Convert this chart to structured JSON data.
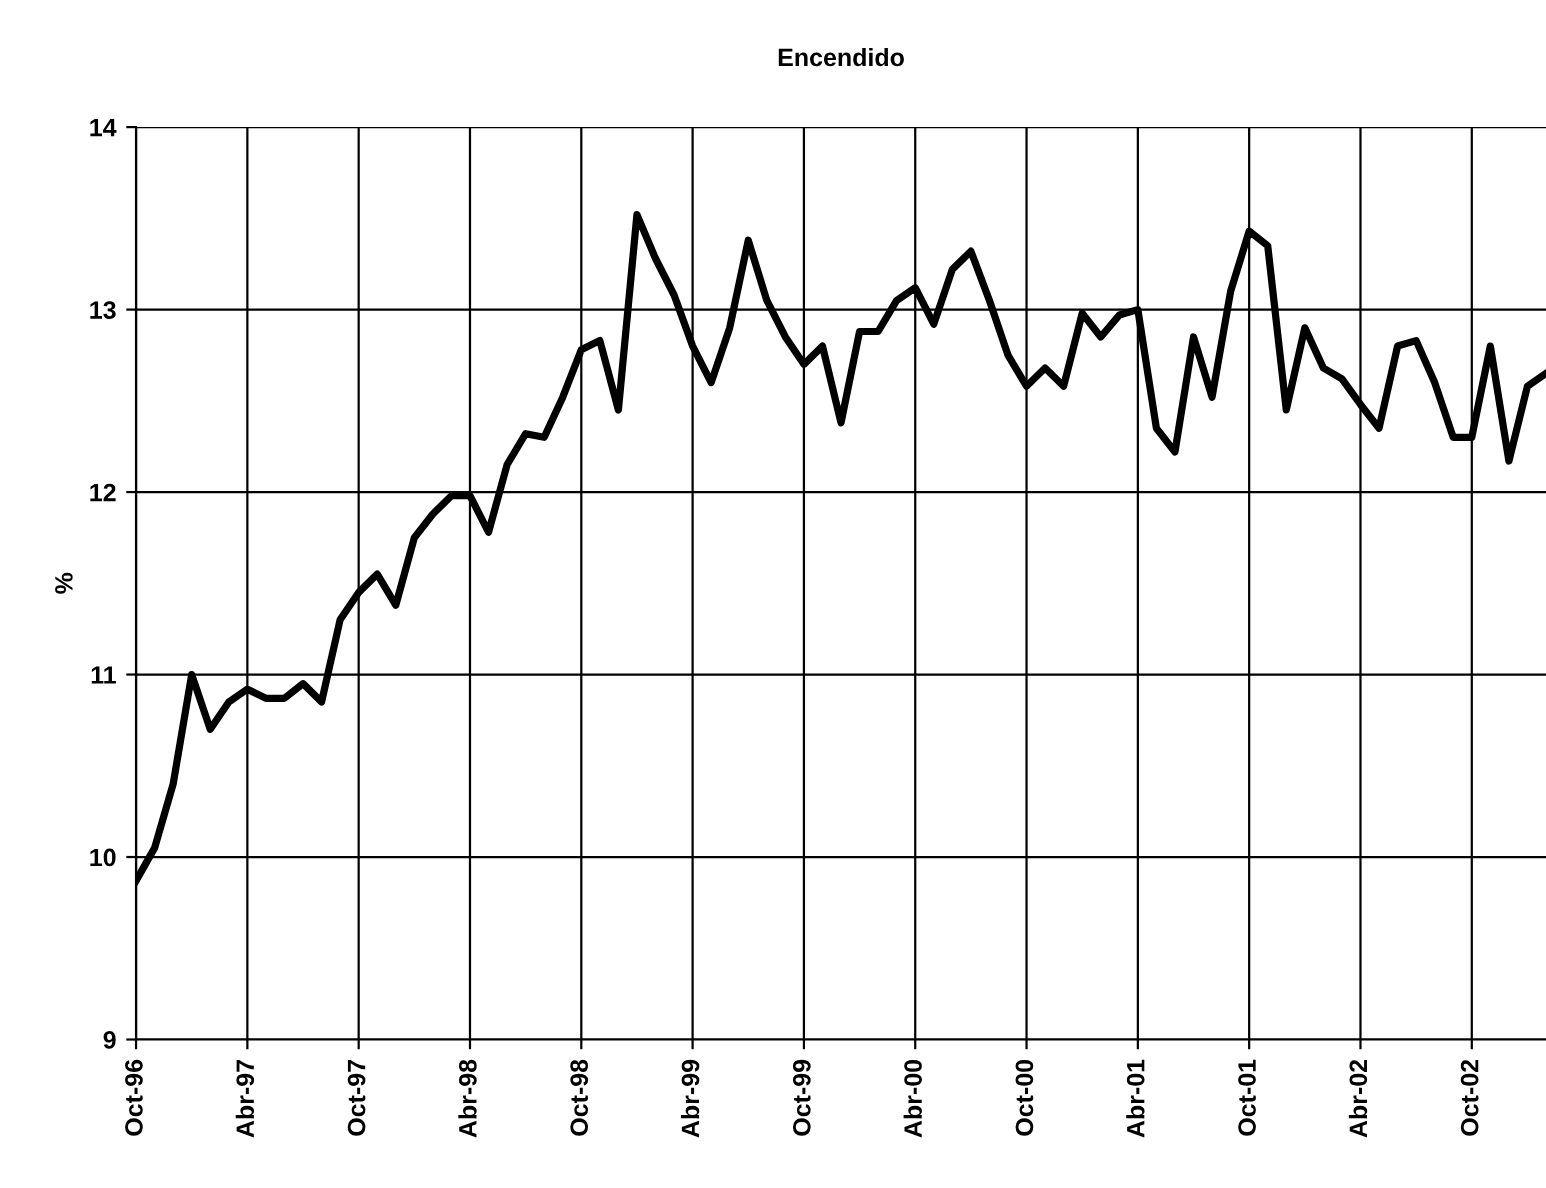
{
  "chart_data": {
    "type": "line",
    "title": "Encendido",
    "ylabel": "%",
    "categories": [
      "Oct-96",
      null,
      null,
      null,
      null,
      null,
      "Abr-97",
      null,
      null,
      null,
      null,
      null,
      "Oct-97",
      null,
      null,
      null,
      null,
      null,
      "Abr-98",
      null,
      null,
      null,
      null,
      null,
      "Oct-98",
      null,
      null,
      null,
      null,
      null,
      "Abr-99",
      null,
      null,
      null,
      null,
      null,
      "Oct-99",
      null,
      null,
      null,
      null,
      null,
      "Abr-00",
      null,
      null,
      null,
      null,
      null,
      "Oct-00",
      null,
      null,
      null,
      null,
      null,
      "Abr-01",
      null,
      null,
      null,
      null,
      null,
      "Oct-01",
      null,
      null,
      null,
      null,
      null,
      "Abr-02",
      null,
      null,
      null,
      null,
      null,
      "Oct-02",
      null,
      null,
      null,
      null
    ],
    "series": [
      {
        "color": "#000000",
        "values": [
          9.87,
          10.05,
          10.4,
          11.0,
          10.7,
          10.85,
          10.92,
          10.87,
          10.87,
          10.95,
          10.85,
          11.3,
          11.45,
          11.55,
          11.38,
          11.75,
          11.88,
          11.98,
          11.98,
          11.78,
          12.15,
          12.32,
          12.3,
          12.52,
          12.78,
          12.83,
          12.45,
          13.52,
          13.28,
          13.08,
          12.8,
          12.6,
          12.9,
          13.38,
          13.05,
          12.85,
          12.7,
          12.8,
          12.38,
          12.88,
          12.88,
          13.05,
          13.12,
          12.92,
          13.22,
          13.32,
          13.05,
          12.75,
          12.58,
          12.68,
          12.58,
          12.98,
          12.85,
          12.97,
          13.0,
          12.35,
          12.22,
          12.85,
          12.52,
          13.1,
          13.43,
          13.35,
          12.45,
          12.9,
          12.68,
          12.62,
          12.48,
          12.35,
          12.8,
          12.83,
          12.6,
          12.3,
          12.3,
          12.8,
          12.17,
          12.58,
          12.65
        ]
      }
    ],
    "ylim": [
      9,
      14
    ],
    "yticks": [
      9,
      10,
      11,
      12,
      13,
      14
    ],
    "grid": true,
    "marker": "none",
    "line_style": "solid"
  }
}
